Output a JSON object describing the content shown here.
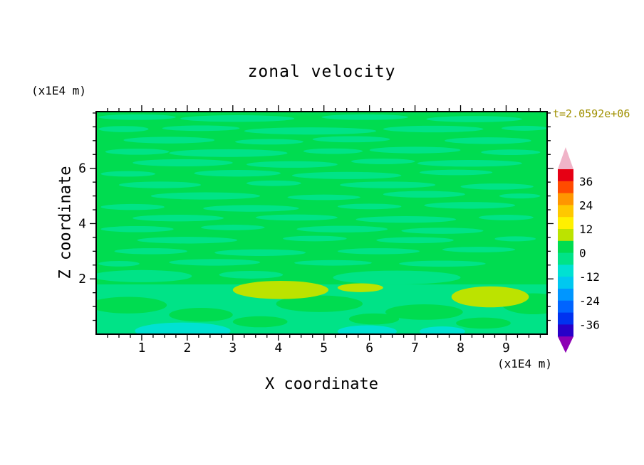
{
  "title": "zonal velocity",
  "time_label": "t=2.0592e+06",
  "colors": {
    "time_label": "#a09000",
    "axis": "#000000",
    "background": "#ffffff"
  },
  "x_axis": {
    "label": "X coordinate",
    "unit_label": "(x1E4 m)",
    "tick_labels": [
      "1",
      "2",
      "3",
      "4",
      "5",
      "6",
      "7",
      "8",
      "9"
    ],
    "major_ticks": [
      1,
      2,
      3,
      4,
      5,
      6,
      7,
      8,
      9
    ],
    "minor_step": 0.25,
    "range": [
      0,
      9.9
    ]
  },
  "z_axis": {
    "label": "Z coordinate",
    "unit_label": "(x1E4 m)",
    "tick_labels": [
      "2",
      "4",
      "6"
    ],
    "major_ticks": [
      2,
      4,
      6
    ],
    "minor_step": 0.5,
    "range": [
      0,
      8.05
    ]
  },
  "colorbar": {
    "tick_labels": [
      "36",
      "24",
      "12",
      "0",
      "-12",
      "-24",
      "-36"
    ]
  },
  "chart_data": {
    "type": "heatmap",
    "subtype": "filled-contour",
    "title": "zonal velocity",
    "xlabel": "X coordinate (x1E4 m)",
    "ylabel": "Z coordinate (x1E4 m)",
    "time": "t=2.0592e+06",
    "x_range": [
      0,
      9.9
    ],
    "z_range": [
      0,
      8.05
    ],
    "contour_levels": [
      -42,
      -36,
      -30,
      -24,
      -18,
      -12,
      -6,
      0,
      6,
      12,
      18,
      24,
      30,
      36,
      42
    ],
    "level_colors": [
      "#2800c8",
      "#0032f0",
      "#0064ff",
      "#0096ff",
      "#00c8f0",
      "#00e1d2",
      "#00e387",
      "#00dc50",
      "#bce300",
      "#fff000",
      "#ffc800",
      "#ff9600",
      "#ff4b00",
      "#e60014"
    ],
    "below_color": "#8c00b4",
    "above_color": "#f0b4c8",
    "background_value": 2,
    "features": {
      "streak_value": -3,
      "yellow_value": 9,
      "cyan_value": -9,
      "bottom_band": {
        "value": -3,
        "z_top": 1.8
      },
      "streaks": [
        [
          0.9,
          7.85,
          0.85,
          0.1
        ],
        [
          3.1,
          7.8,
          1.25,
          0.12
        ],
        [
          5.9,
          7.85,
          0.95,
          0.1
        ],
        [
          8.3,
          7.78,
          1.05,
          0.11
        ],
        [
          0.6,
          7.42,
          0.55,
          0.11
        ],
        [
          2.3,
          7.45,
          0.85,
          0.1
        ],
        [
          4.7,
          7.35,
          1.45,
          0.13
        ],
        [
          7.4,
          7.42,
          1.1,
          0.12
        ],
        [
          9.4,
          7.45,
          0.5,
          0.09
        ],
        [
          1.6,
          7.02,
          1.0,
          0.12
        ],
        [
          3.8,
          6.96,
          0.75,
          0.1
        ],
        [
          5.6,
          7.05,
          0.85,
          0.11
        ],
        [
          8.6,
          7.0,
          0.95,
          0.12
        ],
        [
          0.9,
          6.6,
          0.7,
          0.11
        ],
        [
          2.9,
          6.55,
          1.3,
          0.14
        ],
        [
          5.2,
          6.62,
          0.65,
          0.1
        ],
        [
          7.0,
          6.66,
          1.0,
          0.12
        ],
        [
          9.1,
          6.58,
          0.65,
          0.1
        ],
        [
          1.9,
          6.2,
          1.1,
          0.13
        ],
        [
          4.3,
          6.14,
          1.0,
          0.12
        ],
        [
          6.3,
          6.25,
          0.7,
          0.1
        ],
        [
          8.2,
          6.18,
          1.15,
          0.12
        ],
        [
          0.7,
          5.8,
          0.6,
          0.1
        ],
        [
          3.1,
          5.82,
          0.95,
          0.12
        ],
        [
          5.5,
          5.74,
          1.2,
          0.13
        ],
        [
          7.9,
          5.85,
          0.8,
          0.1
        ],
        [
          1.4,
          5.4,
          0.9,
          0.12
        ],
        [
          3.9,
          5.46,
          0.6,
          0.1
        ],
        [
          6.4,
          5.4,
          1.05,
          0.12
        ],
        [
          8.8,
          5.34,
          0.8,
          0.11
        ],
        [
          2.4,
          5.0,
          1.2,
          0.13
        ],
        [
          5.0,
          4.95,
          0.8,
          0.1
        ],
        [
          7.2,
          5.06,
          0.9,
          0.12
        ],
        [
          9.3,
          5.0,
          0.45,
          0.09
        ],
        [
          0.8,
          4.6,
          0.7,
          0.11
        ],
        [
          3.4,
          4.55,
          1.05,
          0.12
        ],
        [
          6.0,
          4.62,
          0.7,
          0.1
        ],
        [
          8.2,
          4.66,
          1.0,
          0.12
        ],
        [
          1.8,
          4.2,
          1.0,
          0.12
        ],
        [
          4.4,
          4.22,
          0.9,
          0.11
        ],
        [
          6.8,
          4.15,
          1.1,
          0.12
        ],
        [
          9.0,
          4.22,
          0.6,
          0.1
        ],
        [
          0.9,
          3.8,
          0.8,
          0.11
        ],
        [
          3.0,
          3.86,
          0.7,
          0.1
        ],
        [
          5.4,
          3.8,
          1.0,
          0.12
        ],
        [
          7.6,
          3.74,
          0.9,
          0.11
        ],
        [
          2.0,
          3.4,
          1.1,
          0.12
        ],
        [
          4.8,
          3.46,
          0.7,
          0.1
        ],
        [
          7.0,
          3.4,
          0.85,
          0.11
        ],
        [
          9.2,
          3.45,
          0.45,
          0.09
        ],
        [
          1.2,
          3.0,
          0.8,
          0.11
        ],
        [
          3.6,
          2.95,
          1.0,
          0.12
        ],
        [
          6.2,
          3.0,
          0.9,
          0.11
        ],
        [
          8.4,
          3.06,
          0.8,
          0.1
        ],
        [
          2.6,
          2.6,
          1.0,
          0.12
        ],
        [
          5.2,
          2.58,
          0.85,
          0.1
        ],
        [
          7.6,
          2.55,
          0.95,
          0.11
        ],
        [
          0.5,
          2.55,
          0.45,
          0.1
        ],
        [
          1.0,
          2.1,
          1.1,
          0.22
        ],
        [
          6.6,
          2.05,
          1.4,
          0.25
        ],
        [
          3.4,
          2.15,
          0.7,
          0.14
        ]
      ],
      "green_patches": [
        [
          0.7,
          1.05,
          0.85,
          0.3
        ],
        [
          2.3,
          0.7,
          0.7,
          0.25
        ],
        [
          4.9,
          1.1,
          0.95,
          0.3
        ],
        [
          7.2,
          0.8,
          0.85,
          0.28
        ],
        [
          9.6,
          1.1,
          0.7,
          0.38
        ],
        [
          3.6,
          0.45,
          0.6,
          0.2
        ],
        [
          8.5,
          0.4,
          0.6,
          0.2
        ],
        [
          6.1,
          0.55,
          0.55,
          0.2
        ]
      ],
      "yellow_blobs": [
        [
          4.05,
          1.6,
          1.05,
          0.33
        ],
        [
          8.65,
          1.35,
          0.85,
          0.38
        ],
        [
          5.8,
          1.68,
          0.5,
          0.16
        ]
      ],
      "cyan_patches": [
        [
          1.9,
          0.12,
          1.05,
          0.3
        ],
        [
          5.95,
          0.1,
          0.65,
          0.22
        ],
        [
          7.6,
          0.1,
          0.5,
          0.18
        ]
      ]
    },
    "notes": "Near-zero zonal velocity (0 to 6 band) over most of the domain with thin -6 to 0 streaks; weak positive anomalies (6-12) near z=1-2 at x=3-5 and x=8-9.3; weak negative patches (-12 to -6) along the bottom boundary."
  }
}
